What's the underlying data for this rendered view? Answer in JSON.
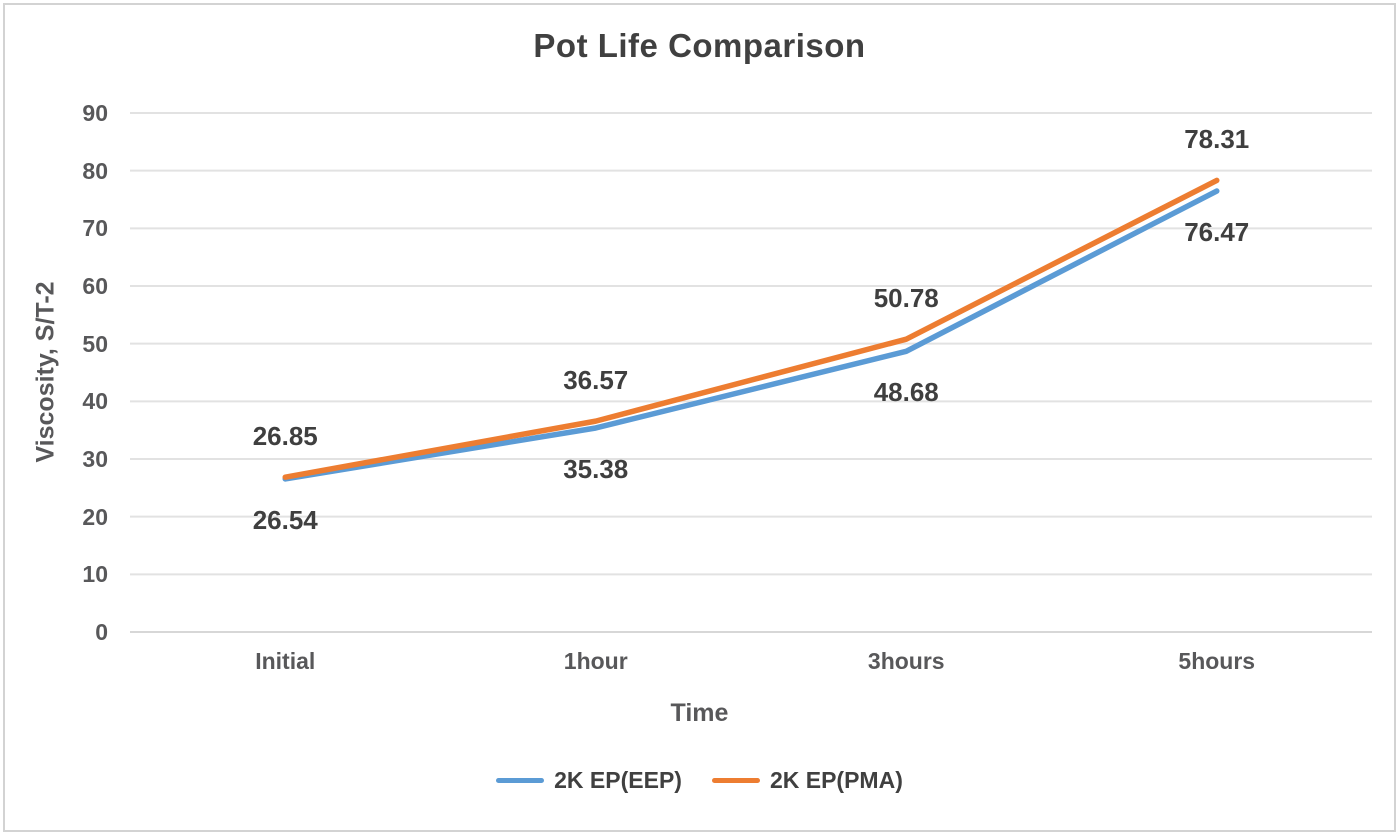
{
  "chart_data": {
    "type": "line",
    "title": "Pot Life Comparison",
    "xlabel": "Time",
    "ylabel": "Viscosity, S/T-2",
    "categories": [
      "Initial",
      "1hour",
      "3hours",
      "5hours"
    ],
    "series": [
      {
        "name": "2K EP(EEP)",
        "color": "#5B9BD5",
        "values": [
          26.54,
          35.38,
          48.68,
          76.47
        ],
        "label_position": "below"
      },
      {
        "name": "2K EP(PMA)",
        "color": "#ED7D31",
        "values": [
          26.85,
          36.57,
          50.78,
          78.31
        ],
        "label_position": "above"
      }
    ],
    "ylim": [
      0,
      90
    ],
    "yticks": [
      0,
      10,
      20,
      30,
      40,
      50,
      60,
      70,
      80,
      90
    ],
    "grid": "horizontal",
    "grid_color": "#e2e2e2",
    "axis_line_color": "#d7d7d7",
    "legend_position": "bottom",
    "data_labels_shown": true
  }
}
